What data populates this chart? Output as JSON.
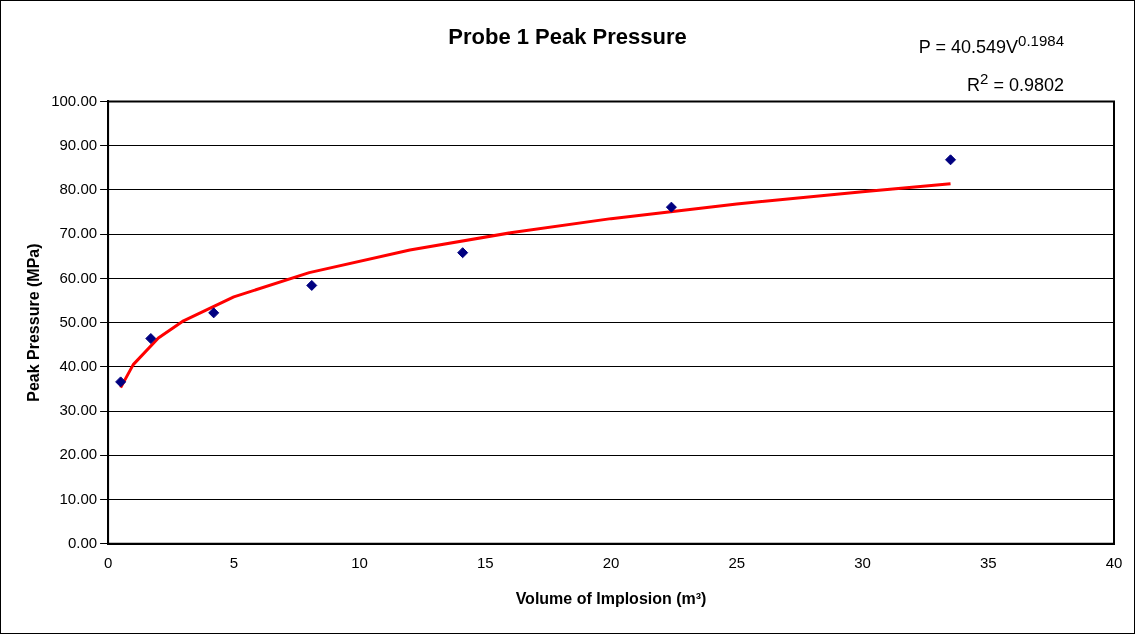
{
  "chart_data": {
    "type": "scatter",
    "title": "Probe 1 Peak Pressure",
    "xlabel": "Volume of Implosion (m³)",
    "ylabel": "Peak Pressure (MPa)",
    "annotations": [
      "P = 40.549V$^{0.1984}$",
      "R$^{2}$ = 0.9802"
    ],
    "series": [
      {
        "color": "#000080",
        "marker": "diamond",
        "x": [
          0.5,
          1.7,
          4.2,
          8.1,
          14.1,
          22.4,
          33.5
        ],
        "values": [
          36.6,
          46.4,
          52.2,
          58.4,
          65.8,
          76.1,
          86.8
        ]
      },
      {
        "type": "line",
        "color": "#ff0000",
        "marker": "none",
        "line_style": "solid",
        "x": [
          0.5,
          1,
          2,
          3,
          5,
          8,
          12,
          16,
          20,
          25,
          30,
          33.5
        ],
        "values": [
          35.3,
          40.5,
          46.5,
          50.4,
          55.8,
          61.3,
          66.4,
          70.3,
          73.5,
          76.8,
          79.6,
          81.4
        ]
      }
    ],
    "xlim": [
      0,
      40
    ],
    "xticks": [
      0,
      5,
      10,
      15,
      20,
      25,
      30,
      35,
      40
    ],
    "ylim": [
      0,
      100
    ],
    "yticks": [
      {
        "value": 0,
        "label": "0.00"
      },
      {
        "value": 10,
        "label": "10.00"
      },
      {
        "value": 20,
        "label": "20.00"
      },
      {
        "value": 30,
        "label": "30.00"
      },
      {
        "value": 40,
        "label": "40.00"
      },
      {
        "value": 50,
        "label": "50.00"
      },
      {
        "value": 60,
        "label": "60.00"
      },
      {
        "value": 70,
        "label": "70.00"
      },
      {
        "value": 80,
        "label": "80.00"
      },
      {
        "value": 90,
        "label": "90.00"
      },
      {
        "value": 100,
        "label": "100.00"
      }
    ],
    "grid": "y",
    "legend": false
  }
}
